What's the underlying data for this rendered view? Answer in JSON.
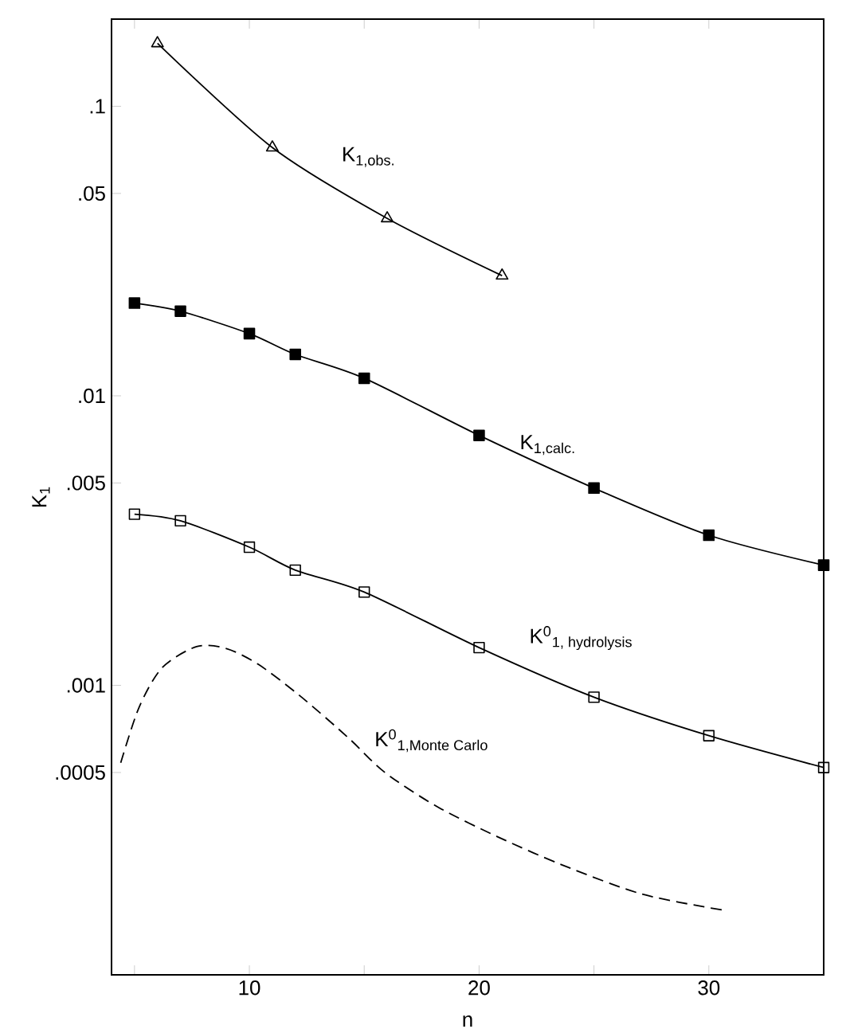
{
  "chart_data": {
    "type": "line",
    "xlabel": "n",
    "ylabel": "K$_{1}$",
    "log": "y",
    "xlim": [
      4,
      35
    ],
    "xticks": [
      {
        "value": 5,
        "label": null
      },
      10,
      {
        "value": 15,
        "label": null
      },
      20,
      {
        "value": 25,
        "label": null
      },
      30,
      {
        "value": 35,
        "label": null
      }
    ],
    "ylim": [
      0.0001,
      0.2
    ],
    "yticks": [
      {
        "value": 0.0005,
        "label": ".0005"
      },
      {
        "value": 0.001,
        "label": ".001"
      },
      {
        "value": 0.005,
        "label": ".005"
      },
      {
        "value": 0.01,
        "label": ".01"
      },
      {
        "value": 0.05,
        "label": ".05"
      },
      {
        "value": 0.1,
        "label": ".1"
      }
    ],
    "grid": false,
    "series": [
      {
        "name": "K$_{1,obs.}$",
        "color": "#000000",
        "marker": "triangle",
        "line_style": "solid",
        "x": [
          6,
          11,
          16,
          21
        ],
        "values": [
          0.165,
          0.072,
          0.041,
          0.026
        ]
      },
      {
        "name": "K$_{1,calc.}$",
        "color": "#000000",
        "marker": "square",
        "line_style": "solid",
        "x": [
          5,
          7,
          10,
          12,
          15,
          20,
          25,
          30,
          35
        ],
        "values": [
          0.0209,
          0.0196,
          0.0164,
          0.0139,
          0.0115,
          0.0073,
          0.0048,
          0.0033,
          0.0026
        ]
      },
      {
        "name": "K$^{0}$$_{1, hydrolysis}$",
        "color": "#000000",
        "marker": "square",
        "line_style": "solid",
        "x": [
          5,
          7,
          10,
          12,
          15,
          20,
          25,
          30,
          35
        ],
        "values": [
          0.0039,
          0.0037,
          0.003,
          0.0025,
          0.0021,
          0.00135,
          0.00091,
          0.00067,
          0.00052
        ]
      },
      {
        "name": "K$^{0}$$_{1,Monte Carlo}$",
        "color": "#000000",
        "marker": "none",
        "line_style": "dashed",
        "x": [
          4.4,
          5.2,
          6.2,
          7.7,
          9,
          10.4,
          12.2,
          14.3,
          15.9,
          18.2,
          20.8,
          23.6,
          27.1,
          30.7
        ],
        "values": [
          0.00054,
          0.00084,
          0.00115,
          0.00136,
          0.00134,
          0.00118,
          0.00092,
          0.00066,
          0.0005,
          0.00038,
          0.0003,
          0.00024,
          0.00019,
          0.000167
        ]
      }
    ]
  }
}
